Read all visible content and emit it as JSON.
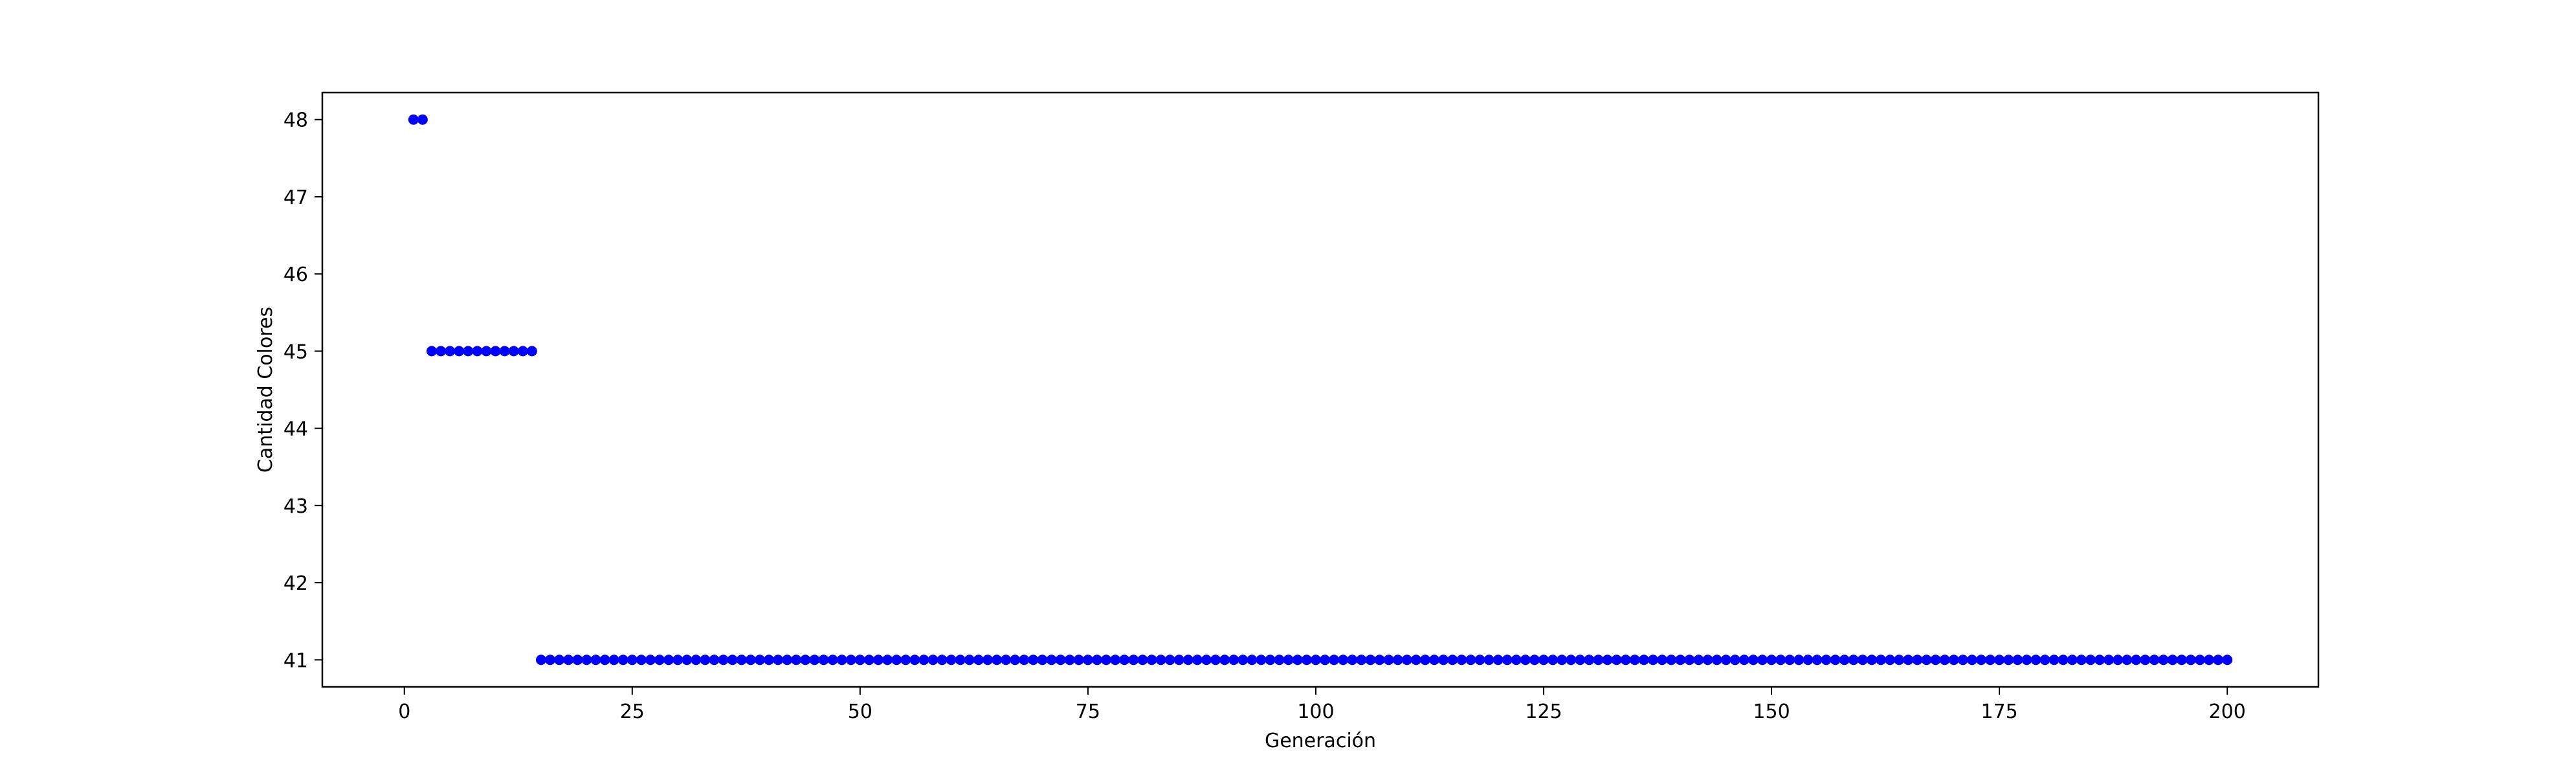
{
  "chart_data": {
    "type": "scatter",
    "title": "",
    "xlabel": "Generación",
    "ylabel": "Cantidad Colores",
    "xlim": [
      -9,
      210
    ],
    "ylim": [
      40.65,
      48.35
    ],
    "xticks": [
      0,
      25,
      50,
      75,
      100,
      125,
      150,
      175,
      200
    ],
    "yticks": [
      41,
      42,
      43,
      44,
      45,
      46,
      47,
      48
    ],
    "grid": false,
    "legend": "none",
    "marker_color": "#0000ff",
    "segments": [
      {
        "x_start": 1,
        "x_end": 2,
        "y": 48
      },
      {
        "x_start": 3,
        "x_end": 14,
        "y": 45
      },
      {
        "x_start": 15,
        "x_end": 200,
        "y": 41
      }
    ]
  }
}
